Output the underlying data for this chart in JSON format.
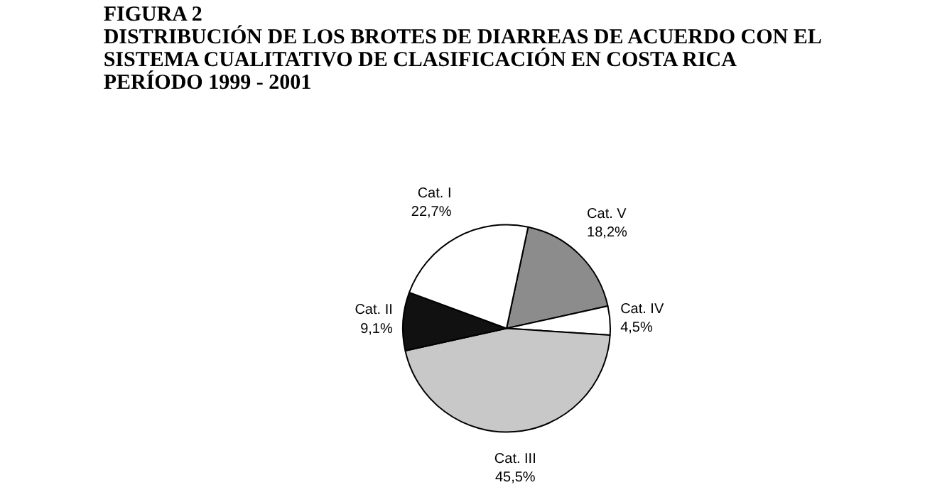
{
  "chart_data": {
    "type": "pie",
    "title": "FIGURA 2\nDISTRIBUCIÓN DE LOS BROTES DE DIARREAS DE ACUERDO CON EL\nSISTEMA CUALITATIVO DE CLASIFICACIÓN EN COSTA RICA\nPERÍODO 1999 - 2001",
    "categories": [
      "Cat. V",
      "Cat. IV",
      "Cat. III",
      "Cat. II",
      "Cat. I"
    ],
    "values": [
      18.2,
      4.5,
      45.5,
      9.1,
      22.7
    ],
    "value_labels": [
      "18,2%",
      "4,5%",
      "45,5%",
      "9,1%",
      "22,7%"
    ],
    "colors": [
      "#8c8c8c",
      "#ffffff",
      "#c8c8c8",
      "#111111",
      "#ffffff"
    ]
  }
}
